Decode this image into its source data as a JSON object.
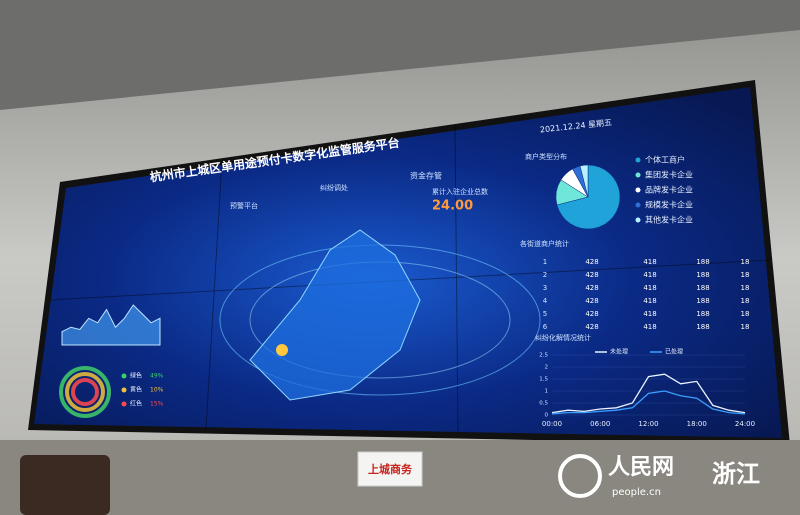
{
  "screen": {
    "title": "杭州市上城区单用途预付卡数字化监管服务平台",
    "date": "2021.12.24  星期五",
    "header_items": [
      "预警平台",
      "纠纷调处",
      "资金存管"
    ],
    "kpi": {
      "label": "累计入驻企业总数",
      "value": "24.00"
    }
  },
  "trend": {
    "values": [
      3,
      4,
      3.5,
      6,
      5,
      8,
      4,
      6,
      9,
      7,
      5,
      6
    ]
  },
  "risk": {
    "items": [
      {
        "label": "绿色",
        "value": "49%",
        "color": "#3ecf6a"
      },
      {
        "label": "黄色",
        "value": "10%",
        "color": "#f0c23a"
      },
      {
        "label": "红色",
        "value": "15%",
        "color": "#ff4b4b"
      }
    ]
  },
  "merchant_types": {
    "title": "商户类型分布",
    "categories": [
      "个体工商户",
      "集团发卡企业",
      "品牌发卡企业",
      "规模发卡企业",
      "其他发卡企业"
    ],
    "values": [
      71,
      13,
      8,
      4,
      4
    ],
    "colors": [
      "#1fa3d8",
      "#6ee6d8",
      "#ffffff",
      "#2d6fd6",
      "#b7f0ff"
    ]
  },
  "street_stats": {
    "title": "各街道商户统计",
    "rows": [
      [
        "1",
        "428",
        "418",
        "188",
        "18"
      ],
      [
        "2",
        "428",
        "418",
        "188",
        "18"
      ],
      [
        "3",
        "428",
        "418",
        "188",
        "18"
      ],
      [
        "4",
        "428",
        "418",
        "188",
        "18"
      ],
      [
        "5",
        "428",
        "418",
        "188",
        "18"
      ],
      [
        "6",
        "428",
        "418",
        "188",
        "18"
      ]
    ]
  },
  "disputes": {
    "title": "纠纷化解情况统计",
    "ylim": [
      0,
      2.5
    ],
    "yticks": [
      0,
      0.5,
      1,
      1.5,
      2,
      2.5
    ],
    "x_labels": [
      "00:00",
      "06:00",
      "12:00",
      "18:00",
      "24:00"
    ],
    "series": [
      {
        "name": "未处理",
        "color": "#e8f4ff",
        "values": [
          0.1,
          0.2,
          0.15,
          0.25,
          0.3,
          0.5,
          1.6,
          1.7,
          1.3,
          1.4,
          0.4,
          0.2,
          0.1
        ]
      },
      {
        "name": "已处理",
        "color": "#3aa0ff",
        "values": [
          0.05,
          0.1,
          0.1,
          0.15,
          0.2,
          0.3,
          0.9,
          1.0,
          0.8,
          0.7,
          0.25,
          0.1,
          0.05
        ]
      }
    ]
  },
  "sign": "上城商务",
  "watermark": {
    "brand": "人民网",
    "site": "people.cn",
    "region": "浙江"
  }
}
